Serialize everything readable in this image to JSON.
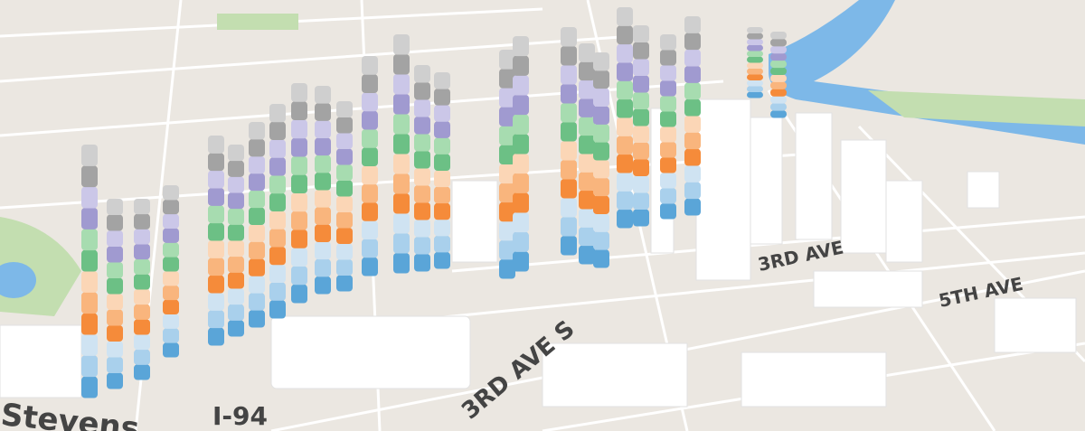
{
  "street_labels": [
    "Stevens",
    "I-94",
    "3RD AVE S",
    "3RD AVE",
    "5TH AVE"
  ]
}
